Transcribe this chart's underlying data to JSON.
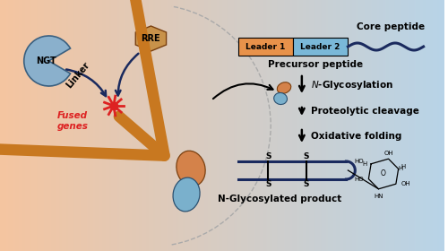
{
  "bg_left_color": "#f5c5a0",
  "bg_right_color": "#b8d4e8",
  "leader1_color": "#e8924a",
  "leader2_color": "#7ab8d8",
  "leader1_text": "Leader 1",
  "leader2_text": "Leader 2",
  "core_peptide_text": "Core peptide",
  "precursor_text": "Precursor peptide",
  "glycosylation_text": "N-Glycosylation",
  "proteolytic_text": "Proteolytic cleavage",
  "oxidative_text": "Oxidative folding",
  "product_text": "N-Glycosylated product",
  "ngt_text": "NGT",
  "rre_text": "RRE",
  "linker_text": "Linker",
  "fused_text": "Fused\ngenes",
  "arrow_color": "#1a2a5e",
  "disulfide_line_color": "#1a2a5e",
  "ngt_color": "#8ab0cc",
  "rre_color": "#c8924a",
  "fused_arrow_color": "#c87820",
  "star_color": "#dd2222",
  "orange_blob_color": "#d4824a",
  "blue_blob_color": "#7ab0cc"
}
